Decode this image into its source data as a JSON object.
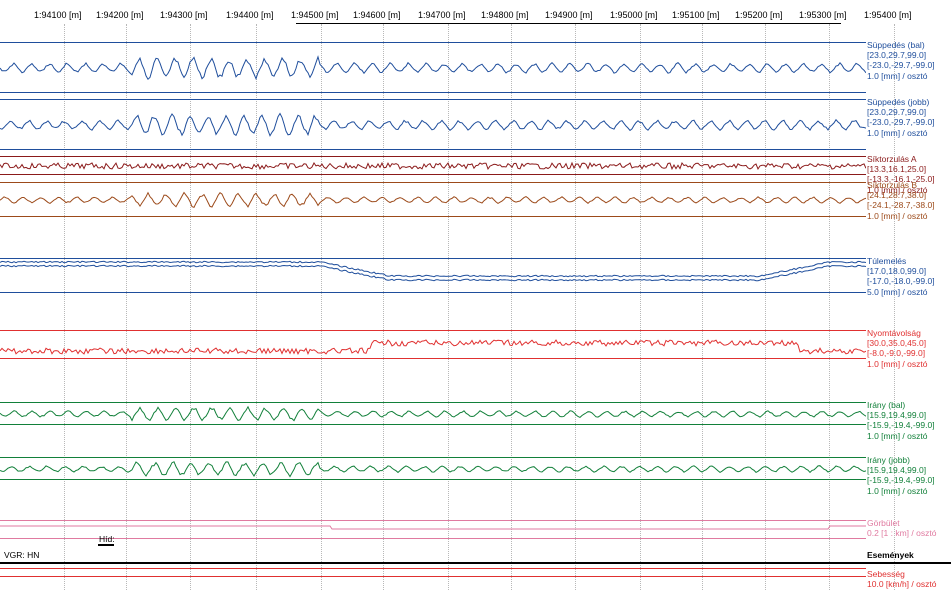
{
  "axis": {
    "ticks": [
      "1:94100 [m]",
      "1:94200 [m]",
      "1:94300 [m]",
      "1:94400 [m]",
      "1:94500 [m]",
      "1:94600 [m]",
      "1:94700 [m]",
      "1:94800 [m]",
      "1:94900 [m]",
      "1:95000 [m]",
      "1:95100 [m]",
      "1:95200 [m]",
      "1:95300 [m]",
      "1:95400 [m]"
    ]
  },
  "channels": [
    {
      "id": "suppedes_bal",
      "color": "#1f4e9c",
      "labels": [
        "Süppedés (bal)",
        "[23.0,29.7,99.0]",
        "[-23.0,-29.7,-99.0]",
        "1.0 [mm] / osztó"
      ],
      "amplitude": "high"
    },
    {
      "id": "suppedes_jobb",
      "color": "#1f4e9c",
      "labels": [
        "Süppedés (jobb)",
        "[23.0,29.7,99.0]",
        "[-23.0,-29.7,-99.0]",
        "1.0 [mm] / osztó"
      ],
      "amplitude": "high"
    },
    {
      "id": "sikorzulas_a",
      "color": "#8b1a1a",
      "labels": [
        "Síktorzulás A",
        "[13.3,16.1,25.0]",
        "[-13.3,-16.1,-25.0]",
        "1.0 [mm] / osztó"
      ],
      "amplitude": "low"
    },
    {
      "id": "sikorzulas_b",
      "color": "#9c4a1a",
      "labels": [
        "Síktorzulás B",
        "[24.1,28.7,38.0]",
        "[-24.1,-28.7,-38.0]",
        "1.0 [mm] / osztó"
      ],
      "amplitude": "mid"
    },
    {
      "id": "tulemeles",
      "color": "#1f4e9c",
      "labels": [
        "Túlemelés",
        "[17.0,18.0,99.0]",
        "[-17.0,-18.0,-99.0]",
        "5.0 [mm] / osztó"
      ],
      "amplitude": "step"
    },
    {
      "id": "nyomtavolsag",
      "color": "#e03030",
      "labels": [
        "Nyomtávolság",
        "[30.0,35.0,45.0]",
        "[-8.0,-9.0,-99.0]",
        "1.0 [mm] / osztó"
      ],
      "amplitude": "gauge"
    },
    {
      "id": "irany_bal",
      "color": "#12803a",
      "labels": [
        "Irány (bal)",
        "[15.9,19.4,99.0]",
        "[-15.9,-19.4,-99.0]",
        "1.0 [mm] / osztó"
      ],
      "amplitude": "mid"
    },
    {
      "id": "irany_jobb",
      "color": "#12803a",
      "labels": [
        "Irány (jobb)",
        "[15.9,19.4,99.0]",
        "[-15.9,-19.4,-99.0]",
        "1.0 [mm] / osztó"
      ],
      "amplitude": "mid"
    },
    {
      "id": "gorbulet",
      "color": "#e07aa0",
      "labels": [
        "Görbület",
        "0.2 [1 : km] / osztó"
      ],
      "amplitude": "curve"
    }
  ],
  "events": {
    "left_label": "VGR: HN",
    "marker_label": "Híd:",
    "right_label": "Események"
  },
  "speed": {
    "color": "#e03030",
    "labels": [
      "Sebesség",
      "10.0 [km/h] / osztó"
    ]
  }
}
